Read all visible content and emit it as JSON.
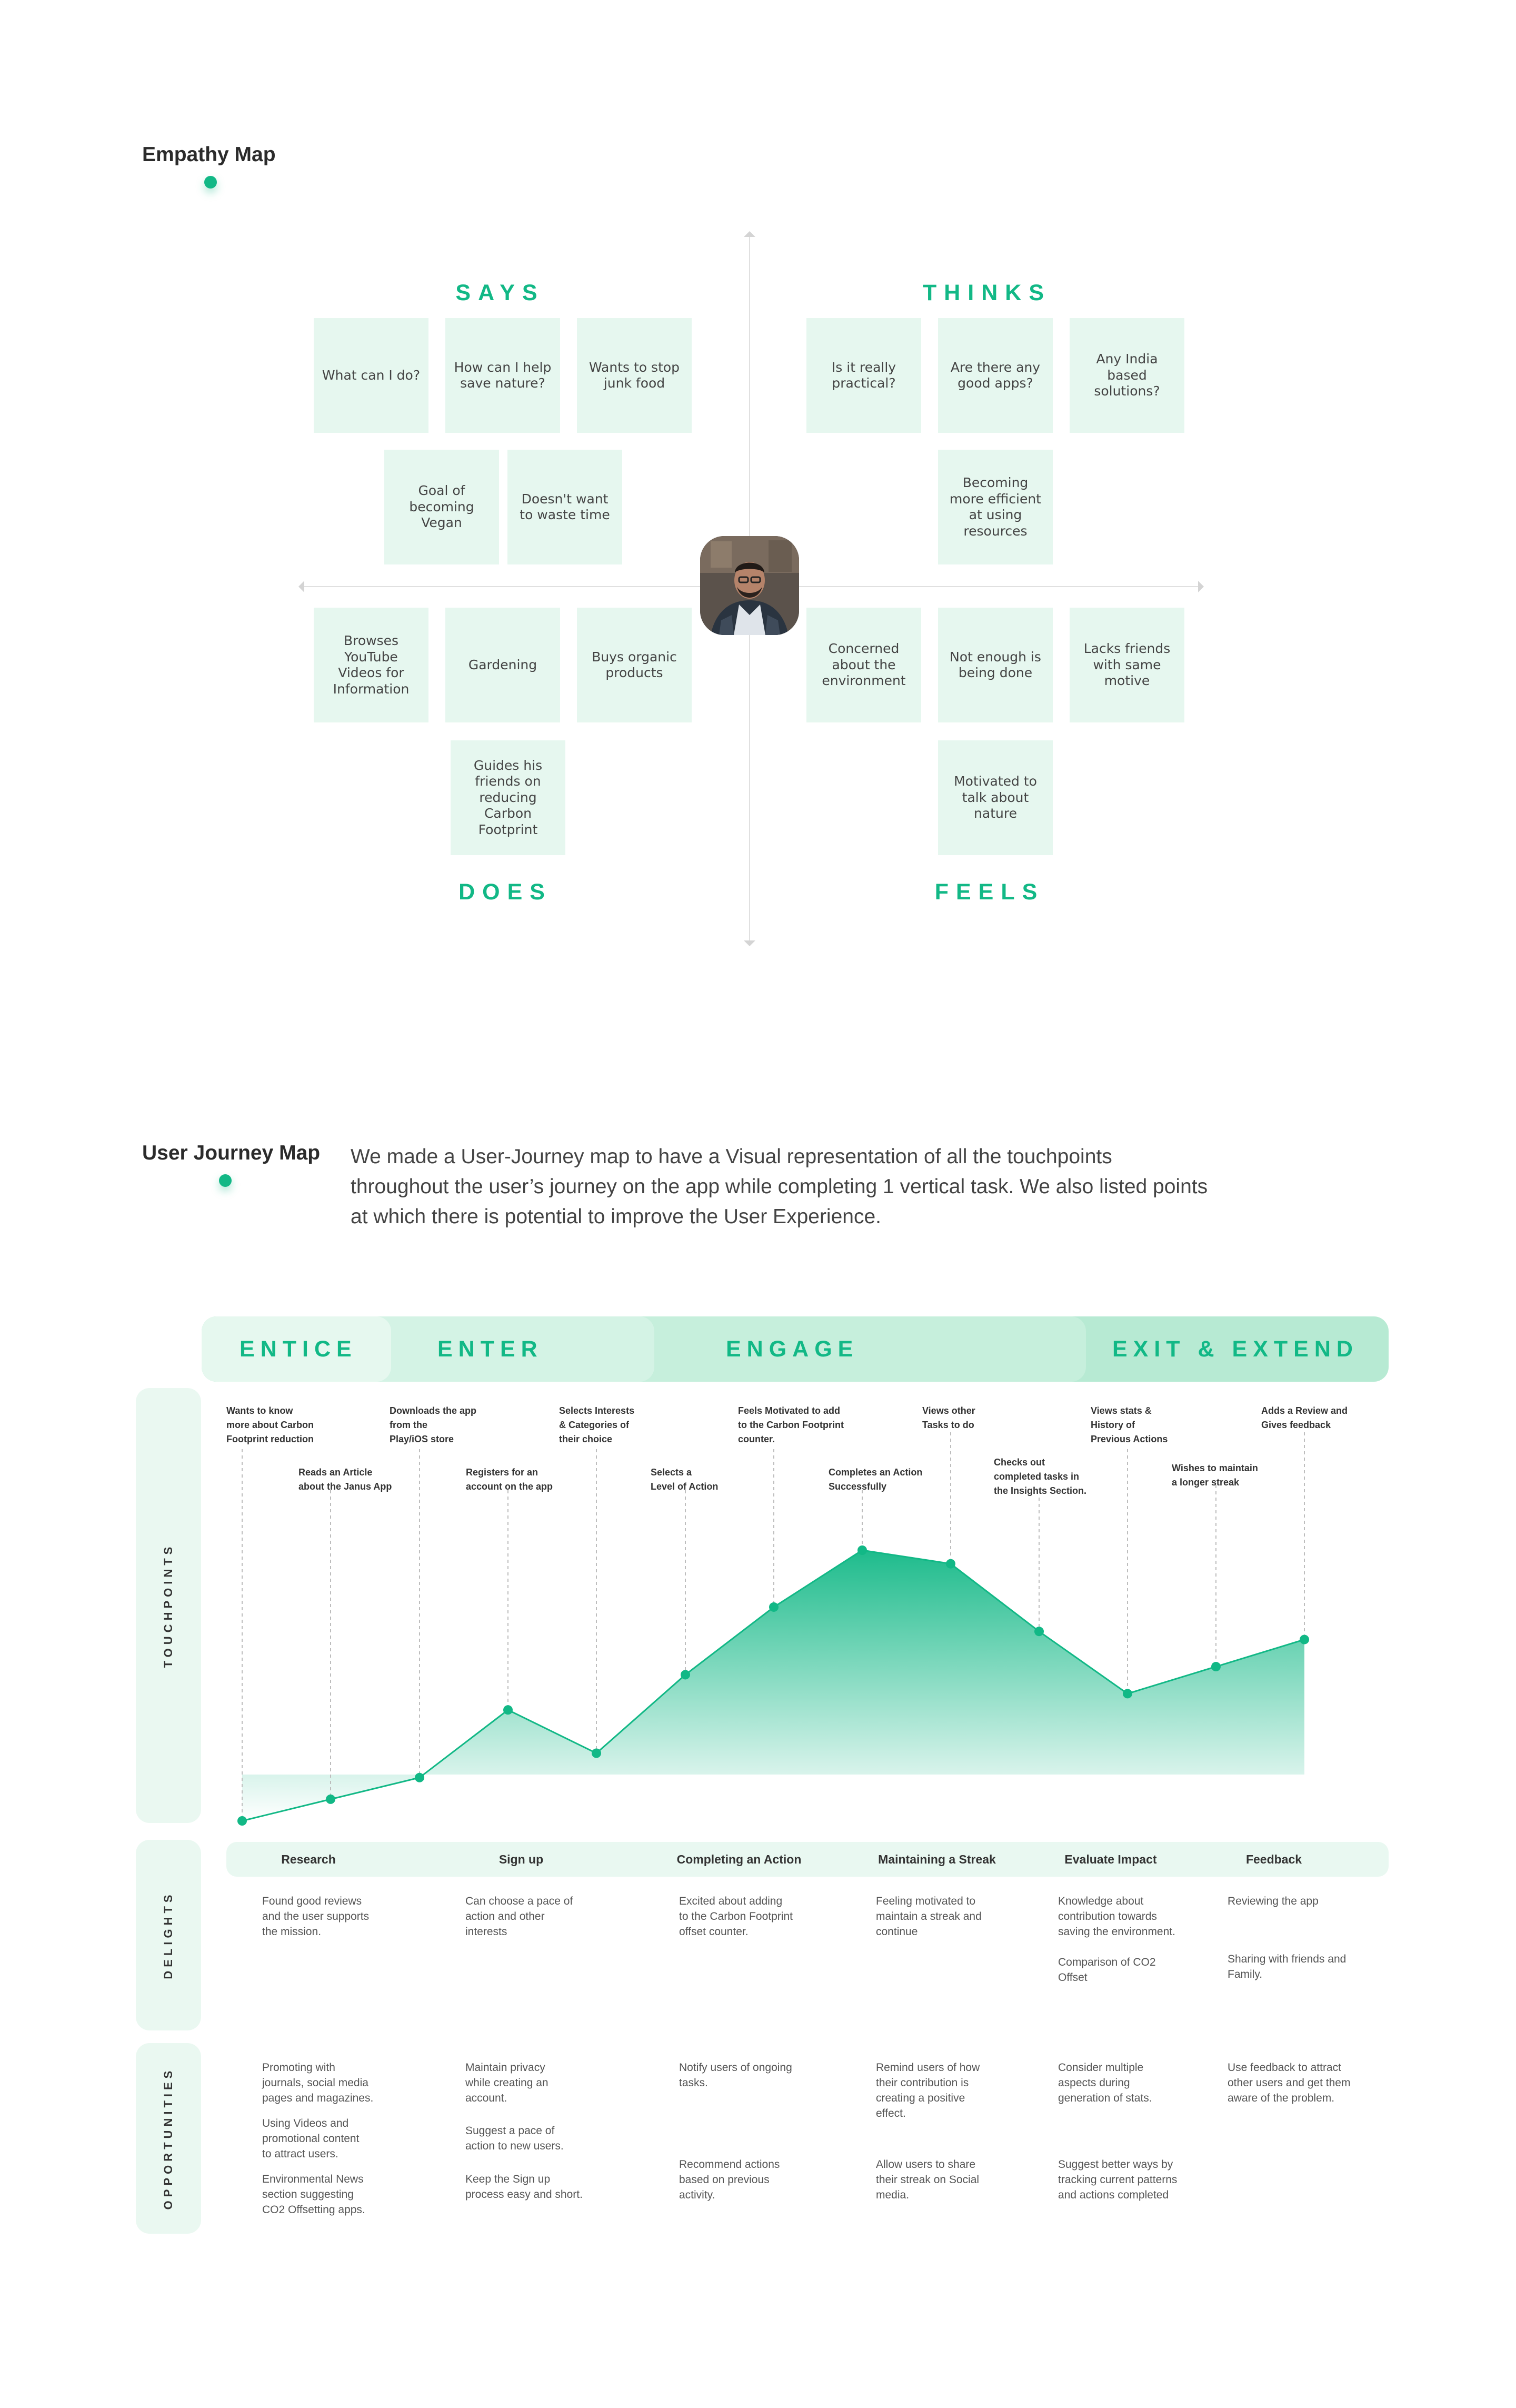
{
  "empathy": {
    "title": "Empathy Map",
    "quadrants": {
      "says": "SAYS",
      "thinks": "THINKS",
      "does": "DOES",
      "feels": "FEELS"
    },
    "notes": {
      "says": [
        "What can I do?",
        "How can I help save nature?",
        "Wants to stop junk food",
        "Goal of becoming Vegan",
        "Doesn't want to waste time"
      ],
      "thinks": [
        "Is it really practical?",
        "Are there any good apps?",
        "Any India based solutions?",
        "Becoming more efficient at using resources"
      ],
      "does": [
        "Browses YouTube Videos for Information",
        "Gardening",
        "Buys organic products",
        "Guides his friends on reducing Carbon Footprint"
      ],
      "feels": [
        "Concerned about the environment",
        "Not enough is being done",
        "Lacks friends with same motive",
        "Motivated to talk about nature"
      ]
    }
  },
  "journey": {
    "title": "User Journey Map",
    "intro": "We made a User-Journey map to have a Visual representation of all the touchpoints throughout the user’s journey on the app while completing 1 vertical task. We also listed points at which there is potential to improve the User Experience.",
    "phases": [
      "ENTICE",
      "ENTER",
      "ENGAGE",
      "EXIT & EXTEND"
    ],
    "rows": {
      "touchpoints": "TOUCHPOINTS",
      "delights": "DELIGHTS",
      "opportunities": "OPPORTUNITIES"
    },
    "touchpoints": [
      "Wants to know\nmore about Carbon\nFootprint reduction",
      "Reads an Article\nabout the Janus App",
      "Downloads the app\nfrom the\nPlay/iOS store",
      "Registers for an\naccount on the app",
      "Selects Interests\n& Categories of\ntheir choice",
      "Selects a\nLevel of Action",
      "Feels Motivated to add\nto the Carbon Footprint\ncounter.",
      "Completes an Action\nSuccessfully",
      "Views other\nTasks to do",
      "Checks out\ncompleted tasks in\nthe Insights Section.",
      "Views stats &\nHistory of\nPrevious Actions",
      "Wishes to maintain\na longer streak",
      "Adds a Review and\nGives feedback"
    ],
    "stages": [
      "Research",
      "Sign up",
      "Completing an Action",
      "Maintaining a Streak",
      "Evaluate Impact",
      "Feedback"
    ],
    "delights": [
      [
        "Found good reviews\nand the user supports\nthe mission."
      ],
      [
        "Can choose a pace of\naction and other\ninterests"
      ],
      [
        "Excited about adding\nto the Carbon Footprint\noffset counter."
      ],
      [
        "Feeling motivated to\nmaintain a streak and\ncontinue"
      ],
      [
        "Knowledge about\ncontribution towards\nsaving the environment.",
        "Comparison of CO2\nOffset"
      ],
      [
        "Reviewing the app",
        "Sharing with friends and\nFamily."
      ]
    ],
    "opportunities": [
      [
        "Promoting with\njournals, social media\npages and magazines.",
        "Using Videos and\npromotional content\nto attract users.",
        "Environmental News\nsection suggesting\nCO2 Offsetting apps."
      ],
      [
        "Maintain privacy\nwhile creating an\naccount.",
        "Suggest a pace of\naction to new users.",
        "Keep the Sign up\nprocess easy and short."
      ],
      [
        "Notify users of ongoing\ntasks.",
        "Recommend actions\nbased on previous\nactivity."
      ],
      [
        "Remind users of how\ntheir contribution is\ncreating a positive\neffect.",
        "Allow users to share\ntheir streak on Social\nmedia."
      ],
      [
        "Consider multiple\naspects during\ngeneration of stats.",
        "Suggest better ways by\ntracking current patterns\nand actions completed"
      ],
      [
        "Use feedback to attract\nother users and get them\naware of the problem."
      ]
    ],
    "chart_data": {
      "type": "area",
      "x": [
        1,
        2,
        3,
        4,
        5,
        6,
        7,
        8,
        9,
        10,
        11,
        12,
        13
      ],
      "values": [
        0,
        8,
        16,
        41,
        25,
        54,
        79,
        100,
        95,
        70,
        47,
        57,
        67
      ],
      "ylim": [
        0,
        100
      ],
      "colors": {
        "fill": "#12b886",
        "line": "#12b886"
      }
    }
  }
}
